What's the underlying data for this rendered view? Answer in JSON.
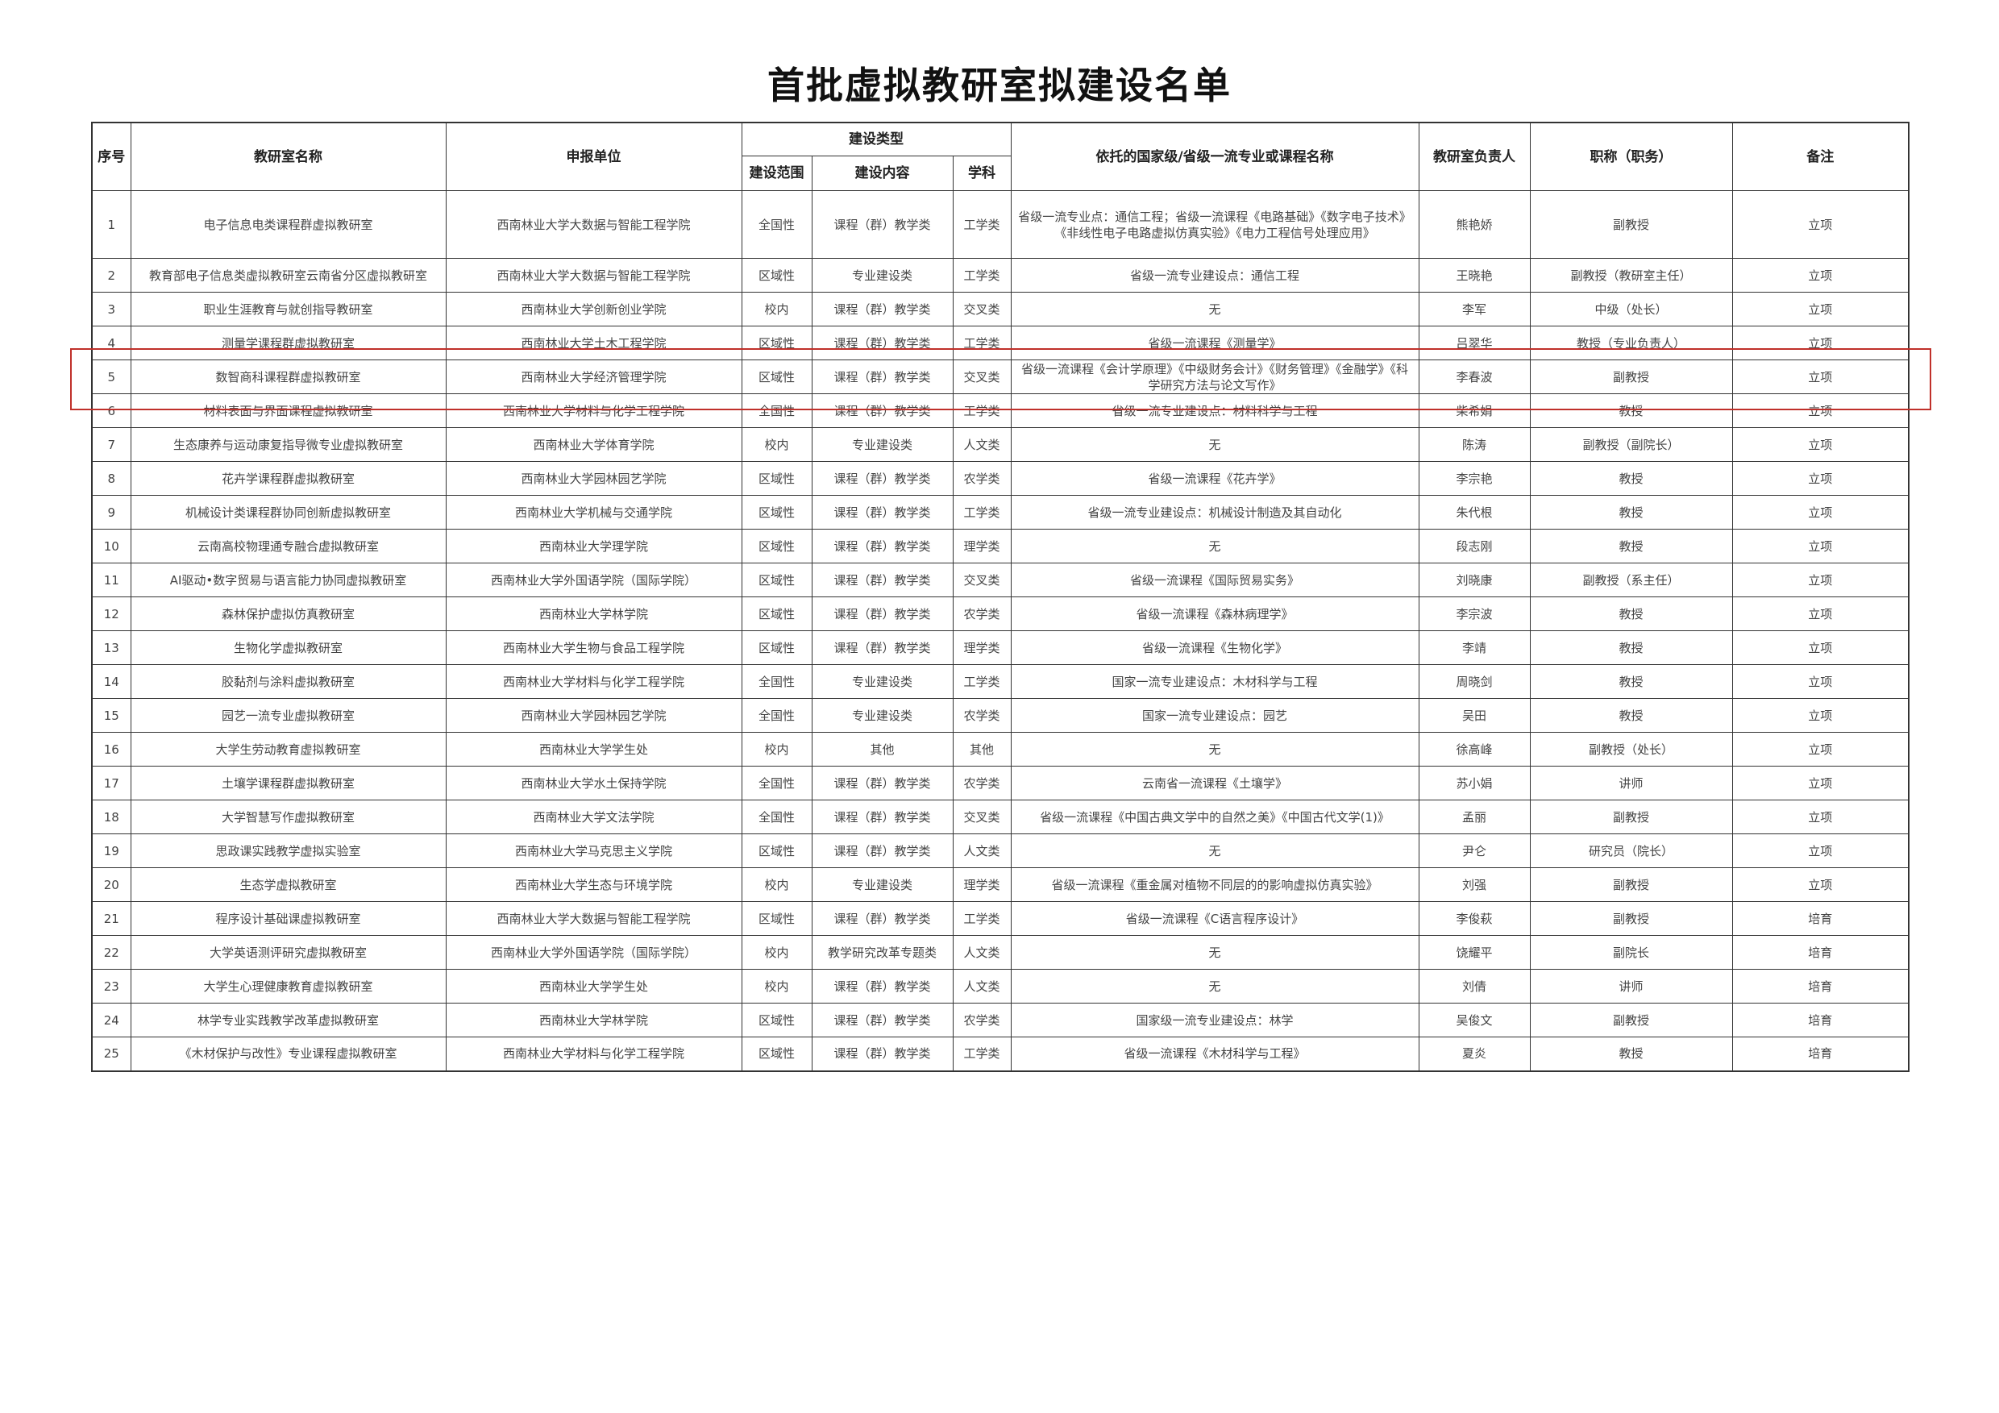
{
  "title": "首批虚拟教研室拟建设名单",
  "highlight_color": "#c0302a",
  "headers": {
    "seq": "序号",
    "name": "教研室名称",
    "unit": "申报单位",
    "type": "建设类型",
    "scope": "建设范围",
    "content": "建设内容",
    "subject": "学科",
    "basis": "依托的国家级/省级一流专业或课程名称",
    "leader": "教研室负责人",
    "title": "职称（职务）",
    "note": "备注"
  },
  "rows": [
    {
      "seq": "1",
      "name": "电子信息电类课程群虚拟教研室",
      "unit": "西南林业大学大数据与智能工程学院",
      "scope": "全国性",
      "content": "课程（群）教学类",
      "subject": "工学类",
      "basis": "省级一流专业点：通信工程；省级一流课程《电路基础》《数字电子技术》《非线性电子电路虚拟仿真实验》《电力工程信号处理应用》",
      "leader": "熊艳娇",
      "title": "副教授",
      "note": "立项"
    },
    {
      "seq": "2",
      "name": "教育部电子信息类虚拟教研室云南省分区虚拟教研室",
      "unit": "西南林业大学大数据与智能工程学院",
      "scope": "区域性",
      "content": "专业建设类",
      "subject": "工学类",
      "basis": "省级一流专业建设点：通信工程",
      "leader": "王晓艳",
      "title": "副教授（教研室主任）",
      "note": "立项"
    },
    {
      "seq": "3",
      "name": "职业生涯教育与就创指导教研室",
      "unit": "西南林业大学创新创业学院",
      "scope": "校内",
      "content": "课程（群）教学类",
      "subject": "交叉类",
      "basis": "无",
      "leader": "李军",
      "title": "中级（处长）",
      "note": "立项"
    },
    {
      "seq": "4",
      "name": "测量学课程群虚拟教研室",
      "unit": "西南林业大学土木工程学院",
      "scope": "区域性",
      "content": "课程（群）教学类",
      "subject": "工学类",
      "basis": "省级一流课程《测量学》",
      "leader": "吕翠华",
      "title": "教授（专业负责人）",
      "note": "立项"
    },
    {
      "seq": "5",
      "name": "数智商科课程群虚拟教研室",
      "unit": "西南林业大学经济管理学院",
      "scope": "区域性",
      "content": "课程（群）教学类",
      "subject": "交叉类",
      "basis": "省级一流课程《会计学原理》《中级财务会计》《财务管理》《金融学》《科学研究方法与论文写作》",
      "leader": "李春波",
      "title": "副教授",
      "note": "立项"
    },
    {
      "seq": "6",
      "name": "材料表面与界面课程虚拟教研室",
      "unit": "西南林业大学材料与化学工程学院",
      "scope": "全国性",
      "content": "课程（群）教学类",
      "subject": "工学类",
      "basis": "省级一流专业建设点：材料科学与工程",
      "leader": "柴希娟",
      "title": "教授",
      "note": "立项"
    },
    {
      "seq": "7",
      "name": "生态康养与运动康复指导微专业虚拟教研室",
      "unit": "西南林业大学体育学院",
      "scope": "校内",
      "content": "专业建设类",
      "subject": "人文类",
      "basis": "无",
      "leader": "陈涛",
      "title": "副教授（副院长）",
      "note": "立项"
    },
    {
      "seq": "8",
      "name": "花卉学课程群虚拟教研室",
      "unit": "西南林业大学园林园艺学院",
      "scope": "区域性",
      "content": "课程（群）教学类",
      "subject": "农学类",
      "basis": "省级一流课程《花卉学》",
      "leader": "李宗艳",
      "title": "教授",
      "note": "立项"
    },
    {
      "seq": "9",
      "name": "机械设计类课程群协同创新虚拟教研室",
      "unit": "西南林业大学机械与交通学院",
      "scope": "区域性",
      "content": "课程（群）教学类",
      "subject": "工学类",
      "basis": "省级一流专业建设点：机械设计制造及其自动化",
      "leader": "朱代根",
      "title": "教授",
      "note": "立项"
    },
    {
      "seq": "10",
      "name": "云南高校物理通专融合虚拟教研室",
      "unit": "西南林业大学理学院",
      "scope": "区域性",
      "content": "课程（群）教学类",
      "subject": "理学类",
      "basis": "无",
      "leader": "段志刚",
      "title": "教授",
      "note": "立项"
    },
    {
      "seq": "11",
      "name": "AI驱动•数字贸易与语言能力协同虚拟教研室",
      "unit": "西南林业大学外国语学院（国际学院）",
      "scope": "区域性",
      "content": "课程（群）教学类",
      "subject": "交叉类",
      "basis": "省级一流课程《国际贸易实务》",
      "leader": "刘晓康",
      "title": "副教授（系主任）",
      "note": "立项"
    },
    {
      "seq": "12",
      "name": "森林保护虚拟仿真教研室",
      "unit": "西南林业大学林学院",
      "scope": "区域性",
      "content": "课程（群）教学类",
      "subject": "农学类",
      "basis": "省级一流课程《森林病理学》",
      "leader": "李宗波",
      "title": "教授",
      "note": "立项"
    },
    {
      "seq": "13",
      "name": "生物化学虚拟教研室",
      "unit": "西南林业大学生物与食品工程学院",
      "scope": "区域性",
      "content": "课程（群）教学类",
      "subject": "理学类",
      "basis": "省级一流课程《生物化学》",
      "leader": "李靖",
      "title": "教授",
      "note": "立项"
    },
    {
      "seq": "14",
      "name": "胶黏剂与涂料虚拟教研室",
      "unit": "西南林业大学材料与化学工程学院",
      "scope": "全国性",
      "content": "专业建设类",
      "subject": "工学类",
      "basis": "国家一流专业建设点：木材科学与工程",
      "leader": "周晓剑",
      "title": "教授",
      "note": "立项"
    },
    {
      "seq": "15",
      "name": "园艺一流专业虚拟教研室",
      "unit": "西南林业大学园林园艺学院",
      "scope": "全国性",
      "content": "专业建设类",
      "subject": "农学类",
      "basis": "国家一流专业建设点：园艺",
      "leader": "吴田",
      "title": "教授",
      "note": "立项"
    },
    {
      "seq": "16",
      "name": "大学生劳动教育虚拟教研室",
      "unit": "西南林业大学学生处",
      "scope": "校内",
      "content": "其他",
      "subject": "其他",
      "basis": "无",
      "leader": "徐高峰",
      "title": "副教授（处长）",
      "note": "立项"
    },
    {
      "seq": "17",
      "name": "土壤学课程群虚拟教研室",
      "unit": "西南林业大学水土保持学院",
      "scope": "全国性",
      "content": "课程（群）教学类",
      "subject": "农学类",
      "basis": "云南省一流课程《土壤学》",
      "leader": "苏小娟",
      "title": "讲师",
      "note": "立项"
    },
    {
      "seq": "18",
      "name": "大学智慧写作虚拟教研室",
      "unit": "西南林业大学文法学院",
      "scope": "全国性",
      "content": "课程（群）教学类",
      "subject": "交叉类",
      "basis": "省级一流课程《中国古典文学中的自然之美》《中国古代文学(1)》",
      "leader": "孟丽",
      "title": "副教授",
      "note": "立项"
    },
    {
      "seq": "19",
      "name": "思政课实践教学虚拟实验室",
      "unit": "西南林业大学马克思主义学院",
      "scope": "区域性",
      "content": "课程（群）教学类",
      "subject": "人文类",
      "basis": "无",
      "leader": "尹仑",
      "title": "研究员（院长）",
      "note": "立项"
    },
    {
      "seq": "20",
      "name": "生态学虚拟教研室",
      "unit": "西南林业大学生态与环境学院",
      "scope": "校内",
      "content": "专业建设类",
      "subject": "理学类",
      "basis": "省级一流课程《重金属对植物不同层的的影响虚拟仿真实验》",
      "leader": "刘强",
      "title": "副教授",
      "note": "立项"
    },
    {
      "seq": "21",
      "name": "程序设计基础课虚拟教研室",
      "unit": "西南林业大学大数据与智能工程学院",
      "scope": "区域性",
      "content": "课程（群）教学类",
      "subject": "工学类",
      "basis": "省级一流课程《C语言程序设计》",
      "leader": "李俊萩",
      "title": "副教授",
      "note": "培育"
    },
    {
      "seq": "22",
      "name": "大学英语测评研究虚拟教研室",
      "unit": "西南林业大学外国语学院（国际学院）",
      "scope": "校内",
      "content": "教学研究改革专题类",
      "subject": "人文类",
      "basis": "无",
      "leader": "饶耀平",
      "title": "副院长",
      "note": "培育"
    },
    {
      "seq": "23",
      "name": "大学生心理健康教育虚拟教研室",
      "unit": "西南林业大学学生处",
      "scope": "校内",
      "content": "课程（群）教学类",
      "subject": "人文类",
      "basis": "无",
      "leader": "刘倩",
      "title": "讲师",
      "note": "培育"
    },
    {
      "seq": "24",
      "name": "林学专业实践教学改革虚拟教研室",
      "unit": "西南林业大学林学院",
      "scope": "区域性",
      "content": "课程（群）教学类",
      "subject": "农学类",
      "basis": "国家级一流专业建设点：林学",
      "leader": "吴俊文",
      "title": "副教授",
      "note": "培育"
    },
    {
      "seq": "25",
      "name": "《木材保护与改性》专业课程虚拟教研室",
      "unit": "西南林业大学材料与化学工程学院",
      "scope": "区域性",
      "content": "课程（群）教学类",
      "subject": "工学类",
      "basis": "省级一流课程《木材科学与工程》",
      "leader": "夏炎",
      "title": "教授",
      "note": "培育"
    }
  ]
}
